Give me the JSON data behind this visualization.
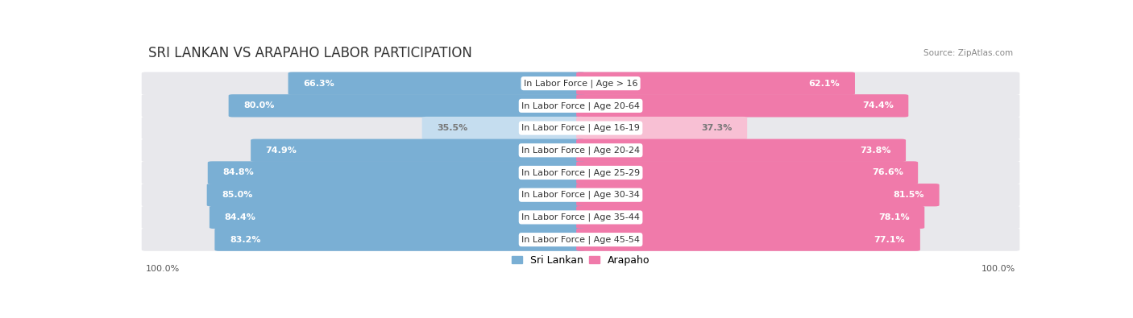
{
  "title": "SRI LANKAN VS ARAPAHO LABOR PARTICIPATION",
  "source": "Source: ZipAtlas.com",
  "categories": [
    "In Labor Force | Age > 16",
    "In Labor Force | Age 20-64",
    "In Labor Force | Age 16-19",
    "In Labor Force | Age 20-24",
    "In Labor Force | Age 25-29",
    "In Labor Force | Age 30-34",
    "In Labor Force | Age 35-44",
    "In Labor Force | Age 45-54"
  ],
  "sri_lankan": [
    66.3,
    80.0,
    35.5,
    74.9,
    84.8,
    85.0,
    84.4,
    83.2
  ],
  "arapaho": [
    62.1,
    74.4,
    37.3,
    73.8,
    76.6,
    81.5,
    78.1,
    77.1
  ],
  "sri_lankan_color": "#7aafd4",
  "sri_lankan_color_light": "#c5ddef",
  "arapaho_color": "#f07aaa",
  "arapaho_color_light": "#f8c0d4",
  "background_color": "#ffffff",
  "row_bg_color": "#e8e8ec",
  "title_fontsize": 12,
  "label_fontsize": 8,
  "value_fontsize": 8,
  "legend_fontsize": 9,
  "max_value": 100.0
}
